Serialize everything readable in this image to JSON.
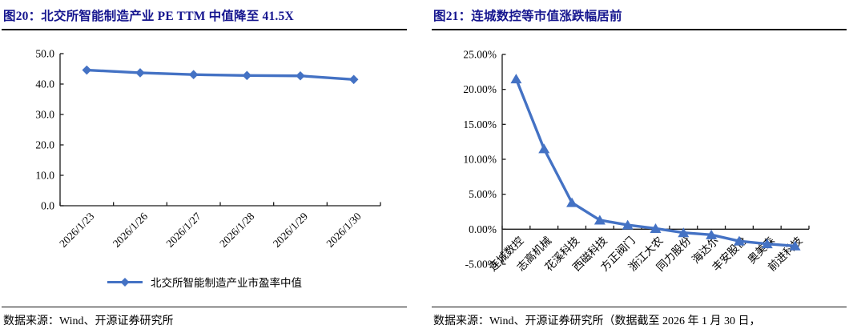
{
  "figures": [
    {
      "title": "图20：北交所智能制造产业 PE TTM 中值降至 41.5X",
      "legend": "北交所智能制造产业市盈率中值",
      "source": "数据来源：Wind、开源证券研究所"
    },
    {
      "title": "图21：连城数控等市值涨跌幅居前",
      "source": "数据来源：Wind、开源证券研究所（数据截至 2026 年 1 月 30 日，"
    }
  ],
  "chart_data": [
    {
      "type": "line",
      "title": "图20：北交所智能制造产业 PE TTM 中值降至 41.5X",
      "categories": [
        "2026/1/23",
        "2026/1/26",
        "2026/1/27",
        "2026/1/28",
        "2026/1/29",
        "2026/1/30"
      ],
      "series": [
        {
          "name": "北交所智能制造产业市盈率中值",
          "values": [
            44.6,
            43.7,
            43.1,
            42.8,
            42.7,
            41.5
          ]
        }
      ],
      "ylim": [
        0,
        50
      ],
      "yticks": [
        0,
        10,
        20,
        30,
        40,
        50
      ],
      "ytick_labels": [
        "0.0",
        "10.0",
        "20.0",
        "30.0",
        "40.0",
        "50.0"
      ],
      "axis_cross_y": 0,
      "marker": "diamond",
      "line_color": "#4472C4",
      "grid": false,
      "legend_position": "bottom",
      "xlabel": "",
      "ylabel": ""
    },
    {
      "type": "line",
      "title": "图21：连城数控等市值涨跌幅居前",
      "categories": [
        "连城数控",
        "志高机械",
        "花溪科技",
        "西磁科技",
        "方正阀门",
        "浙江大农",
        "同力股份",
        "海达尔",
        "丰安股份",
        "奥美森",
        "前进科技"
      ],
      "series": [
        {
          "name": "市值涨跌幅",
          "values": [
            21.5,
            11.5,
            3.8,
            1.3,
            0.6,
            0.1,
            -0.5,
            -0.8,
            -1.7,
            -2.1,
            -2.4
          ]
        }
      ],
      "ylim": [
        -5,
        25
      ],
      "yticks": [
        -5,
        0,
        5,
        10,
        15,
        20,
        25
      ],
      "ytick_labels": [
        "-5.00%",
        "0.00%",
        "5.00%",
        "10.00%",
        "15.00%",
        "20.00%",
        "25.00%"
      ],
      "axis_cross_y": 0,
      "marker": "triangle",
      "line_color": "#4472C4",
      "grid": false,
      "legend_position": "none",
      "xlabel": "",
      "ylabel": ""
    }
  ],
  "colors": {
    "accent_line": "#4472C4",
    "title": "#16168F",
    "axis": "#1a1a1a"
  }
}
